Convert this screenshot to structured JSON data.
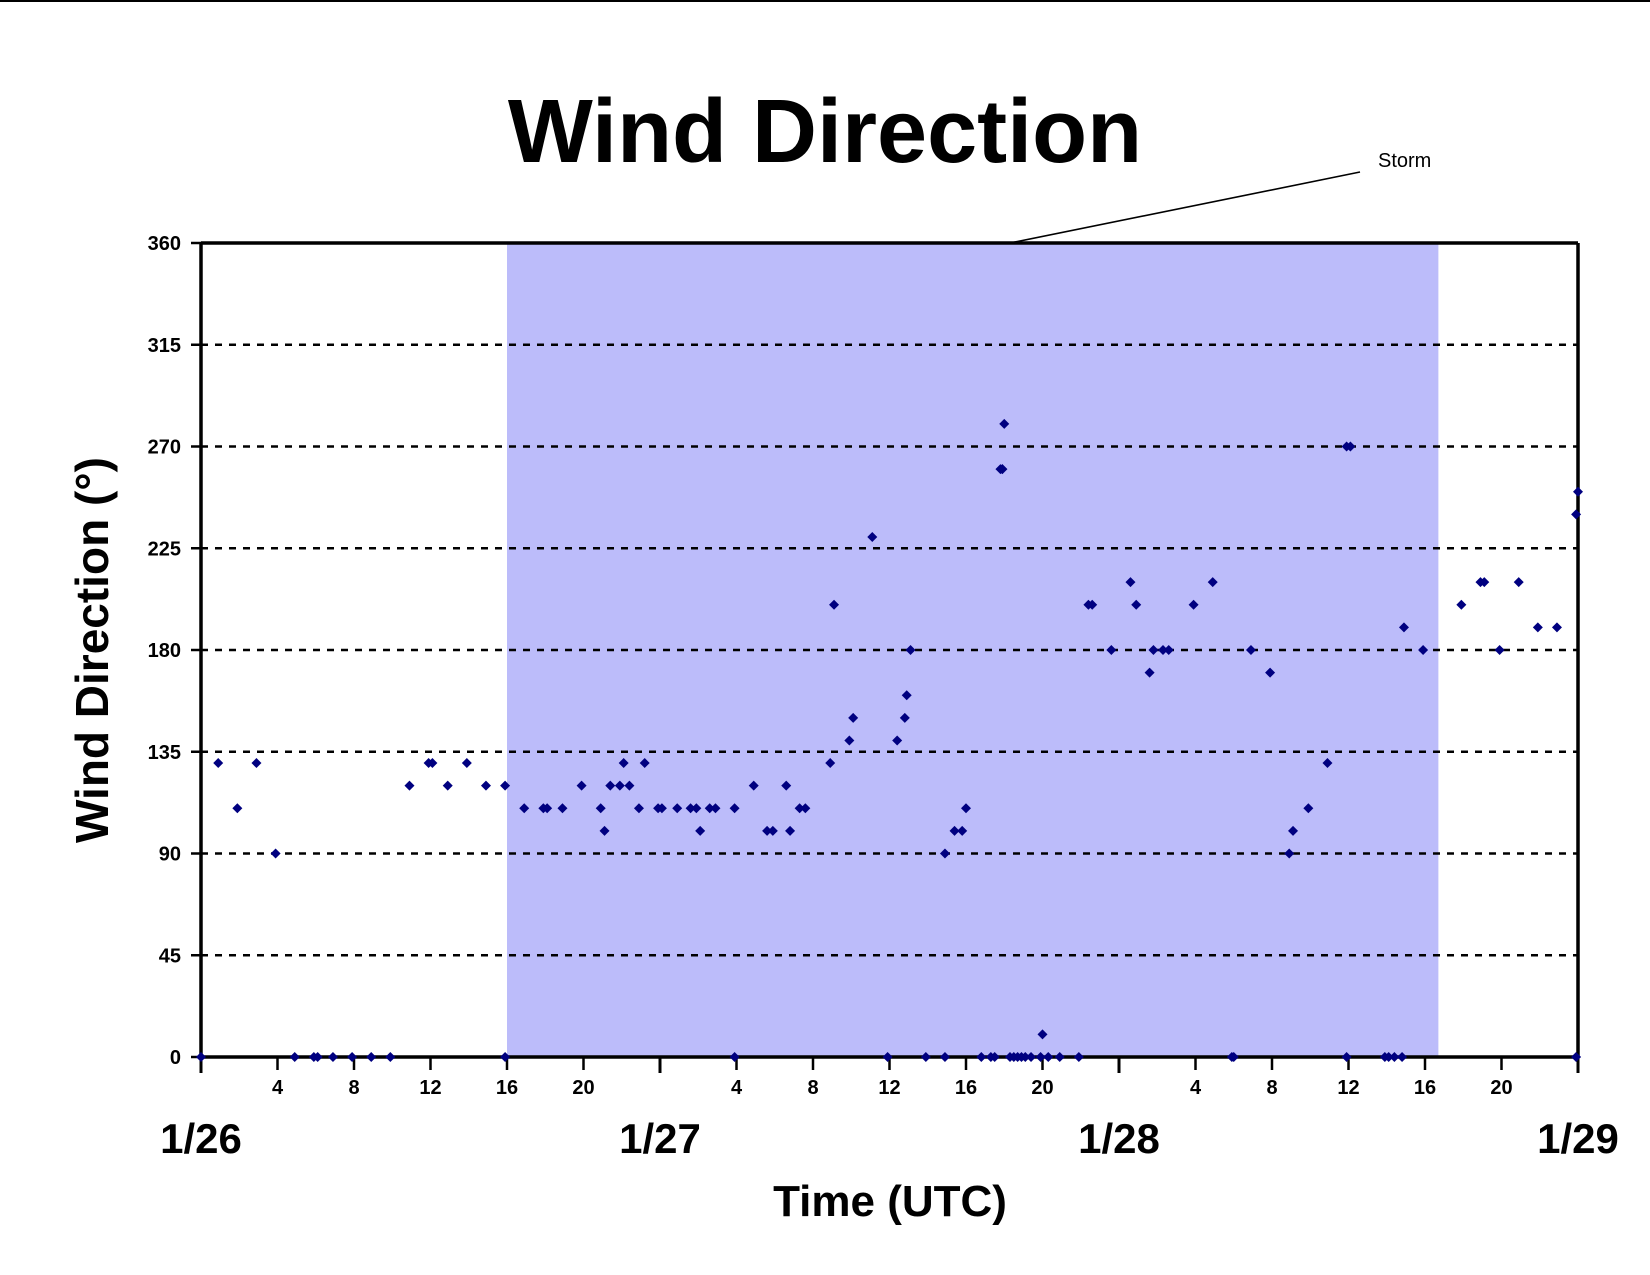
{
  "chart_data": {
    "type": "scatter",
    "title": "Wind Direction",
    "xlabel": "Time (UTC)",
    "ylabel": "Wind Direction (°)",
    "ylim": [
      0,
      360
    ],
    "yticks": [
      0,
      45,
      90,
      135,
      180,
      225,
      270,
      315,
      360
    ],
    "xlim": [
      0,
      72
    ],
    "x_units": "hours since 1/26 00 UTC",
    "date_labels": [
      {
        "text": "1/26",
        "x": 0
      },
      {
        "text": "1/27",
        "x": 24
      },
      {
        "text": "1/28",
        "x": 48
      },
      {
        "text": "1/29",
        "x": 72
      }
    ],
    "x_hour_ticks": [
      {
        "x": 4,
        "label": "4"
      },
      {
        "x": 8,
        "label": "8"
      },
      {
        "x": 12,
        "label": "12"
      },
      {
        "x": 16,
        "label": "16"
      },
      {
        "x": 20,
        "label": "20"
      },
      {
        "x": 28,
        "label": "4"
      },
      {
        "x": 32,
        "label": "8"
      },
      {
        "x": 36,
        "label": "12"
      },
      {
        "x": 40,
        "label": "16"
      },
      {
        "x": 44,
        "label": "20"
      },
      {
        "x": 52,
        "label": "4"
      },
      {
        "x": 56,
        "label": "8"
      },
      {
        "x": 60,
        "label": "12"
      },
      {
        "x": 64,
        "label": "16"
      },
      {
        "x": 68,
        "label": "20"
      }
    ],
    "grid": "horizontal dashed",
    "storm_span": [
      16,
      64.7
    ],
    "storm_label": "Storm",
    "colors": {
      "points": "#000080",
      "storm_band": "#bcbcfa"
    },
    "series": [
      {
        "points": [
          [
            0.9,
            130
          ],
          [
            1.9,
            110
          ],
          [
            2.9,
            130
          ],
          [
            3.9,
            90
          ],
          [
            10.9,
            120
          ],
          [
            11.9,
            130
          ],
          [
            12.1,
            130
          ],
          [
            12.9,
            120
          ],
          [
            13.9,
            130
          ],
          [
            14.9,
            120
          ],
          [
            15.9,
            120
          ],
          [
            16.9,
            110
          ],
          [
            17.9,
            110
          ],
          [
            18.1,
            110
          ],
          [
            18.9,
            110
          ],
          [
            19.9,
            120
          ],
          [
            20.9,
            110
          ],
          [
            21.1,
            100
          ],
          [
            21.4,
            120
          ],
          [
            21.9,
            120
          ],
          [
            22.1,
            130
          ],
          [
            22.4,
            120
          ],
          [
            22.9,
            110
          ],
          [
            23.2,
            130
          ],
          [
            23.9,
            110
          ],
          [
            24.1,
            110
          ],
          [
            24.9,
            110
          ],
          [
            25.6,
            110
          ],
          [
            25.9,
            110
          ],
          [
            26.1,
            100
          ],
          [
            26.6,
            110
          ],
          [
            26.9,
            110
          ],
          [
            27.9,
            110
          ],
          [
            28.9,
            120
          ],
          [
            29.6,
            100
          ],
          [
            29.9,
            100
          ],
          [
            30.6,
            120
          ],
          [
            30.8,
            100
          ],
          [
            31.3,
            110
          ],
          [
            31.6,
            110
          ],
          [
            32.9,
            130
          ],
          [
            33.1,
            200
          ],
          [
            33.9,
            140
          ],
          [
            34.1,
            150
          ],
          [
            35.1,
            230
          ],
          [
            36.4,
            140
          ],
          [
            36.8,
            150
          ],
          [
            36.9,
            160
          ],
          [
            37.1,
            180
          ],
          [
            38.9,
            90
          ],
          [
            39.4,
            100
          ],
          [
            39.8,
            100
          ],
          [
            40.0,
            110
          ],
          [
            41.8,
            260
          ],
          [
            41.9,
            260
          ],
          [
            42.0,
            280
          ],
          [
            41.9,
            260
          ],
          [
            46.4,
            200
          ],
          [
            46.6,
            200
          ],
          [
            47.6,
            180
          ],
          [
            48.6,
            210
          ],
          [
            48.9,
            200
          ],
          [
            49.6,
            170
          ],
          [
            49.8,
            180
          ],
          [
            50.3,
            180
          ],
          [
            50.6,
            180
          ],
          [
            51.9,
            200
          ],
          [
            52.9,
            210
          ],
          [
            54.9,
            180
          ],
          [
            55.9,
            170
          ],
          [
            56.9,
            90
          ],
          [
            57.1,
            100
          ],
          [
            57.9,
            110
          ],
          [
            58.9,
            130
          ],
          [
            59.9,
            270
          ],
          [
            60.1,
            270
          ],
          [
            62.9,
            190
          ],
          [
            63.9,
            180
          ],
          [
            65.9,
            200
          ],
          [
            66.9,
            210
          ],
          [
            67.1,
            210
          ],
          [
            67.9,
            180
          ],
          [
            68.9,
            210
          ],
          [
            69.9,
            190
          ],
          [
            70.9,
            190
          ],
          [
            71.9,
            240
          ],
          [
            72.0,
            250
          ]
        ]
      },
      {
        "points": [
          [
            0,
            0
          ],
          [
            4.9,
            0
          ],
          [
            5.9,
            0
          ],
          [
            6.1,
            0
          ],
          [
            6.9,
            0
          ],
          [
            7.9,
            0
          ],
          [
            8.9,
            0
          ],
          [
            9.9,
            0
          ],
          [
            15.9,
            0
          ],
          [
            27.9,
            0
          ],
          [
            35.9,
            0
          ],
          [
            37.9,
            0
          ],
          [
            38.9,
            0
          ],
          [
            40.8,
            0
          ],
          [
            41.3,
            0
          ],
          [
            41.5,
            0
          ],
          [
            42.3,
            0
          ],
          [
            42.5,
            0
          ],
          [
            42.7,
            0
          ],
          [
            42.9,
            0
          ],
          [
            43.1,
            0
          ],
          [
            43.4,
            0
          ],
          [
            43.9,
            0
          ],
          [
            44.0,
            10
          ],
          [
            44.3,
            0
          ],
          [
            44.9,
            0
          ],
          [
            45.9,
            0
          ],
          [
            53.9,
            0
          ],
          [
            54.0,
            0
          ],
          [
            59.9,
            0
          ],
          [
            61.9,
            0
          ],
          [
            62.1,
            0
          ],
          [
            62.4,
            0
          ],
          [
            62.8,
            0
          ],
          [
            71.9,
            0
          ]
        ]
      }
    ]
  }
}
